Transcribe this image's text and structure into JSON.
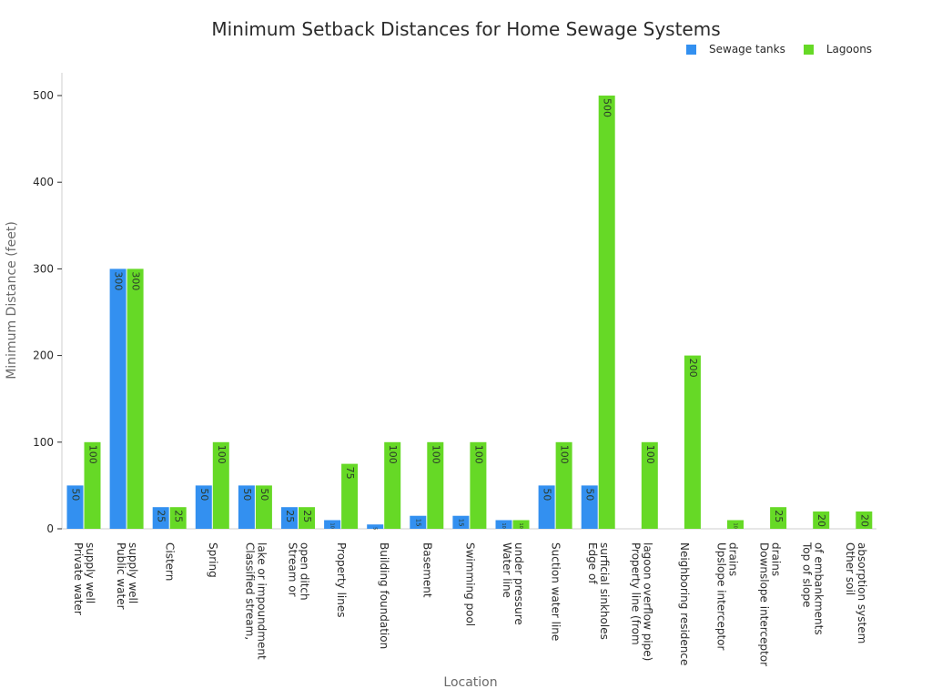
{
  "chart_data": {
    "type": "bar",
    "title": "Minimum Setback Distances for Home Sewage Systems",
    "xlabel": "Location",
    "ylabel": "Minimum Distance (feet)",
    "ylim": [
      0,
      525
    ],
    "yticks": [
      0,
      100,
      200,
      300,
      400,
      500
    ],
    "grid": false,
    "legend_position": "top-right",
    "categories": [
      [
        "Private water",
        "supply well"
      ],
      [
        "Public water",
        "supply well"
      ],
      [
        "Cistern"
      ],
      [
        "Spring"
      ],
      [
        "Classified stream,",
        "lake or impoundment"
      ],
      [
        "Stream or",
        "open ditch"
      ],
      [
        "Property lines"
      ],
      [
        "Building foundation"
      ],
      [
        "Basement"
      ],
      [
        "Swimming pool"
      ],
      [
        "Water line",
        "under pressure"
      ],
      [
        "Suction water line"
      ],
      [
        "Edge of",
        "surficial sinkholes"
      ],
      [
        "Property line (from",
        "lagoon overflow pipe)"
      ],
      [
        "Neighboring residence"
      ],
      [
        "Upslope interceptor",
        "drains"
      ],
      [
        "Downslope interceptor",
        "drains"
      ],
      [
        "Top of slope",
        "of embankments"
      ],
      [
        "Other soil",
        "absorption system"
      ]
    ],
    "series": [
      {
        "name": "Sewage tanks",
        "color": "#3390f0",
        "values": [
          50,
          300,
          25,
          50,
          50,
          25,
          10,
          5,
          15,
          15,
          10,
          50,
          50,
          null,
          null,
          null,
          null,
          null,
          null
        ]
      },
      {
        "name": "Lagoons",
        "color": "#66d926",
        "values": [
          100,
          300,
          25,
          100,
          50,
          25,
          75,
          100,
          100,
          100,
          10,
          100,
          500,
          100,
          200,
          10,
          25,
          20,
          20
        ]
      }
    ]
  }
}
